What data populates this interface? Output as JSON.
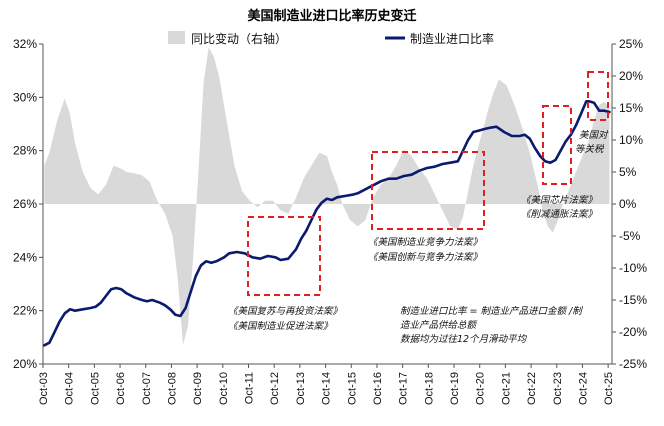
{
  "chart_data": {
    "type": "line",
    "title": "美国制造业进口比率历史变迁",
    "legend": {
      "position": "top",
      "entries": [
        "同比变动（右轴）",
        "制造业进口比率"
      ]
    },
    "colors": {
      "area": "#d9d9d9",
      "line": "#0b1a6e",
      "box": "#e02020",
      "axis": "#555555"
    },
    "left_axis": {
      "range": [
        20,
        32
      ],
      "ticks": [
        "20%",
        "22%",
        "24%",
        "26%",
        "28%",
        "30%",
        "32%"
      ],
      "tick_values": [
        20,
        22,
        24,
        26,
        28,
        30,
        32
      ]
    },
    "right_axis": {
      "range": [
        -25,
        25
      ],
      "ticks": [
        "-25%",
        "-20%",
        "-15%",
        "-10%",
        "-5%",
        "0%",
        "5%",
        "10%",
        "15%",
        "20%",
        "25%"
      ],
      "tick_values": [
        -25,
        -20,
        -15,
        -10,
        -5,
        0,
        5,
        10,
        15,
        20,
        25
      ]
    },
    "x_range": [
      2003.75,
      2025.9
    ],
    "x_tick_labels": [
      "Oct-03",
      "Oct-04",
      "Oct-05",
      "Oct-06",
      "Oct-07",
      "Oct-08",
      "Oct-09",
      "Oct-10",
      "Oct-11",
      "Oct-12",
      "Oct-13",
      "Oct-14",
      "Oct-15",
      "Oct-16",
      "Oct-17",
      "Oct-18",
      "Oct-19",
      "Oct-20",
      "Oct-21",
      "Oct-22",
      "Oct-23",
      "Oct-24",
      "Oct-25"
    ],
    "series": [
      {
        "name": "制造业进口比率",
        "axis": "left",
        "x": [
          2003.8,
          2004.0,
          2004.2,
          2004.4,
          2004.6,
          2004.8,
          2005.0,
          2005.3,
          2005.6,
          2005.8,
          2006.0,
          2006.2,
          2006.4,
          2006.6,
          2006.8,
          2007.0,
          2007.3,
          2007.6,
          2007.8,
          2008.0,
          2008.3,
          2008.5,
          2008.7,
          2008.9,
          2009.1,
          2009.3,
          2009.5,
          2009.7,
          2009.9,
          2010.1,
          2010.3,
          2010.5,
          2010.8,
          2011.0,
          2011.3,
          2011.6,
          2011.9,
          2012.2,
          2012.5,
          2012.8,
          2013.0,
          2013.3,
          2013.6,
          2013.8,
          2014.0,
          2014.2,
          2014.4,
          2014.6,
          2014.8,
          2015.0,
          2015.2,
          2015.5,
          2015.8,
          2016.0,
          2016.3,
          2016.6,
          2016.9,
          2017.2,
          2017.5,
          2017.8,
          2018.1,
          2018.4,
          2018.7,
          2019.0,
          2019.3,
          2019.6,
          2019.9,
          2020.1,
          2020.3,
          2020.5,
          2020.7,
          2020.9,
          2021.1,
          2021.4,
          2021.7,
          2022.0,
          2022.3,
          2022.5,
          2022.7,
          2022.9,
          2023.1,
          2023.3,
          2023.5,
          2023.7,
          2023.9,
          2024.1,
          2024.3,
          2024.5,
          2024.7,
          2024.9,
          2025.0,
          2025.2,
          2025.4,
          2025.6,
          2025.8
        ],
        "values": [
          20.7,
          20.8,
          21.2,
          21.6,
          21.9,
          22.05,
          22.0,
          22.05,
          22.1,
          22.15,
          22.3,
          22.55,
          22.8,
          22.85,
          22.8,
          22.65,
          22.5,
          22.4,
          22.35,
          22.4,
          22.3,
          22.2,
          22.05,
          21.85,
          21.8,
          22.1,
          22.7,
          23.3,
          23.7,
          23.85,
          23.8,
          23.85,
          24.0,
          24.15,
          24.2,
          24.15,
          24.0,
          23.95,
          24.05,
          24.0,
          23.9,
          23.95,
          24.3,
          24.7,
          25.0,
          25.4,
          25.8,
          26.05,
          26.2,
          26.15,
          26.25,
          26.3,
          26.35,
          26.4,
          26.55,
          26.7,
          26.85,
          26.95,
          26.95,
          27.05,
          27.1,
          27.25,
          27.35,
          27.4,
          27.5,
          27.55,
          27.6,
          28.0,
          28.4,
          28.7,
          28.75,
          28.8,
          28.85,
          28.9,
          28.7,
          28.55,
          28.55,
          28.6,
          28.45,
          28.1,
          27.8,
          27.6,
          27.55,
          27.65,
          28.0,
          28.35,
          28.6,
          28.95,
          29.4,
          29.85,
          29.85,
          29.8,
          29.5,
          29.5,
          29.45
        ]
      },
      {
        "name": "同比变动（右轴）",
        "axis": "right",
        "type": "area",
        "x": [
          2003.8,
          2004.0,
          2004.3,
          2004.6,
          2004.8,
          2005.0,
          2005.3,
          2005.6,
          2005.9,
          2006.2,
          2006.5,
          2006.8,
          2007.0,
          2007.3,
          2007.6,
          2007.9,
          2008.2,
          2008.5,
          2008.8,
          2009.0,
          2009.2,
          2009.4,
          2009.6,
          2009.8,
          2010.0,
          2010.2,
          2010.4,
          2010.6,
          2010.9,
          2011.2,
          2011.5,
          2011.8,
          2012.1,
          2012.4,
          2012.7,
          2013.0,
          2013.3,
          2013.6,
          2013.9,
          2014.2,
          2014.5,
          2014.8,
          2015.0,
          2015.2,
          2015.4,
          2015.7,
          2016.0,
          2016.3,
          2016.6,
          2016.9,
          2017.2,
          2017.5,
          2017.8,
          2018.1,
          2018.4,
          2018.7,
          2019.0,
          2019.3,
          2019.6,
          2019.9,
          2020.1,
          2020.3,
          2020.5,
          2020.7,
          2020.9,
          2021.1,
          2021.3,
          2021.5,
          2021.8,
          2022.1,
          2022.4,
          2022.7,
          2023.0,
          2023.2,
          2023.4,
          2023.6,
          2023.8,
          2024.0,
          2024.2,
          2024.4,
          2024.6,
          2024.8,
          2025.0,
          2025.2,
          2025.4,
          2025.6,
          2025.8
        ],
        "values": [
          6.0,
          8.0,
          13.0,
          16.5,
          14.0,
          9.5,
          5.0,
          2.5,
          1.5,
          3.0,
          6.0,
          5.5,
          5.0,
          4.8,
          4.5,
          3.5,
          0.5,
          -1.5,
          -5.0,
          -12.0,
          -22.0,
          -19.0,
          -8.0,
          5.0,
          19.0,
          24.5,
          23.0,
          20.0,
          13.0,
          6.0,
          2.0,
          0.5,
          -0.5,
          0.5,
          0.5,
          -1.0,
          -1.5,
          1.0,
          4.0,
          6.0,
          8.0,
          7.5,
          5.0,
          3.0,
          0.0,
          -2.5,
          -3.5,
          -2.5,
          1.0,
          3.0,
          4.0,
          6.0,
          8.5,
          7.5,
          5.5,
          4.0,
          1.5,
          -1.0,
          -3.5,
          -4.0,
          -2.0,
          2.0,
          6.0,
          9.0,
          12.0,
          15.0,
          17.5,
          19.5,
          18.5,
          15.5,
          12.0,
          8.0,
          3.0,
          -1.0,
          -3.5,
          -4.5,
          -2.5,
          0.0,
          2.0,
          4.0,
          6.0,
          8.0,
          10.0,
          13.0,
          15.5,
          16.0,
          15.0
        ]
      }
    ],
    "annotations": [
      {
        "lines": [
          "《美国复苏与再投资法案》",
          "《美国制造业促进法案》"
        ]
      },
      {
        "lines": [
          "《美国制造业竞争力法案》",
          "《美国创新与竞争力法案》"
        ]
      },
      {
        "lines": [
          "《美国芯片法案》",
          "《削减通胀法案》"
        ]
      },
      {
        "lines": [
          "美国对",
          "等关税"
        ]
      }
    ],
    "note": [
      "制造业进口比率 = 制造业产品进口金额 /制",
      "造业产品供给总额",
      "数据均为过往12个月滑动平均"
    ]
  }
}
